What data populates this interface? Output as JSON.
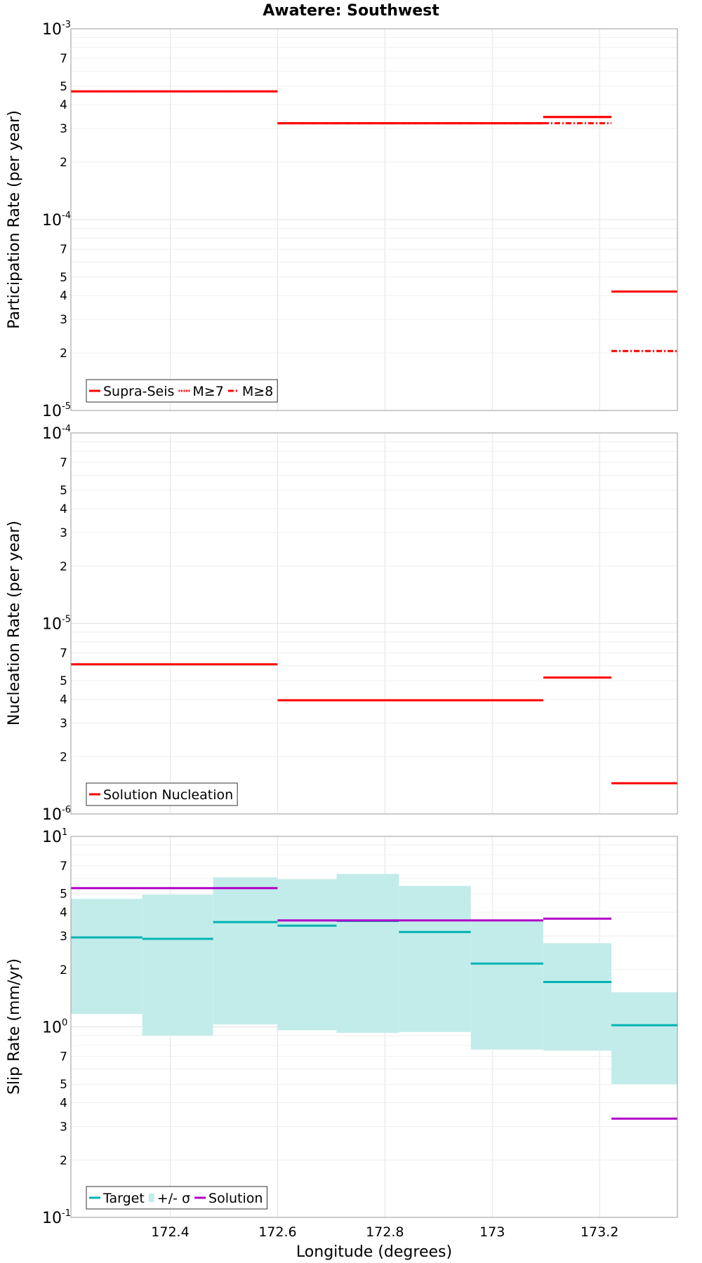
{
  "colors": {
    "red": "#ff0000",
    "teal": "#00b3b3",
    "band": "#c2ecea",
    "purple": "#b000c8"
  },
  "title": "Awatere: Southwest",
  "x_axis": {
    "label": "Longitude (degrees)",
    "range": [
      172.215,
      173.345
    ],
    "ticks": [
      "172.4",
      "172.6",
      "172.8",
      "173",
      "173.2"
    ],
    "tick_values": [
      172.4,
      172.6,
      172.8,
      173.0,
      173.2
    ]
  },
  "chart_data": [
    {
      "type": "line",
      "scale": "log",
      "ylabel": "Participation Rate (per year)",
      "ylim": [
        1e-05,
        0.001
      ],
      "decades": [
        {
          "mantissa": "10",
          "exponent": "-5"
        },
        {
          "mantissa": "10",
          "exponent": "-4"
        },
        {
          "mantissa": "10",
          "exponent": "-3"
        }
      ],
      "minor_labels": [
        "2",
        "3",
        "4",
        "5",
        "7"
      ],
      "series": [
        {
          "name": "Supra-Seis",
          "style": "solid",
          "color": "#ff0000",
          "steps": [
            [
              172.215,
              172.6,
              0.00047
            ],
            [
              172.6,
              173.095,
              0.00032
            ],
            [
              173.095,
              173.222,
              0.000345
            ],
            [
              173.222,
              173.345,
              4.2e-05
            ]
          ]
        },
        {
          "name": "M≥7",
          "style": "dotted",
          "color": "#ff0000",
          "steps": [
            [
              172.215,
              172.6,
              0.00047
            ],
            [
              172.6,
              173.095,
              0.00032
            ],
            [
              173.095,
              173.222,
              0.000345
            ],
            [
              173.222,
              173.345,
              4.2e-05
            ]
          ]
        },
        {
          "name": "M≥8",
          "style": "dashdot",
          "color": "#ff0000",
          "steps": [
            [
              172.6,
              173.095,
              0.00032
            ],
            [
              173.095,
              173.222,
              0.00032
            ],
            [
              173.222,
              173.345,
              2.05e-05
            ]
          ]
        }
      ],
      "legend": [
        "Supra-Seis",
        "M≥7",
        "M≥8"
      ]
    },
    {
      "type": "line",
      "scale": "log",
      "ylabel": "Nucleation Rate (per year)",
      "ylim": [
        1e-06,
        0.0001
      ],
      "decades": [
        {
          "mantissa": "10",
          "exponent": "-6"
        },
        {
          "mantissa": "10",
          "exponent": "-5"
        },
        {
          "mantissa": "10",
          "exponent": "-4"
        }
      ],
      "minor_labels": [
        "2",
        "3",
        "4",
        "5",
        "7"
      ],
      "series": [
        {
          "name": "Solution Nucleation",
          "style": "solid",
          "color": "#ff0000",
          "steps": [
            [
              172.215,
              172.6,
              6.1e-06
            ],
            [
              172.6,
              173.095,
              3.95e-06
            ],
            [
              173.095,
              173.222,
              5.2e-06
            ],
            [
              173.222,
              173.345,
              1.45e-06
            ]
          ]
        }
      ],
      "legend": [
        "Solution Nucleation"
      ]
    },
    {
      "type": "line",
      "scale": "log",
      "ylabel": "Slip Rate (mm/yr)",
      "ylim": [
        0.1,
        10
      ],
      "decades": [
        {
          "mantissa": "10",
          "exponent": "-1"
        },
        {
          "mantissa": "10",
          "exponent": "0"
        },
        {
          "mantissa": "10",
          "exponent": "1"
        }
      ],
      "minor_labels": [
        "2",
        "3",
        "4",
        "5",
        "7"
      ],
      "series": [
        {
          "name": "Target",
          "style": "solid",
          "color": "#00b3b3",
          "steps": [
            [
              172.215,
              172.348,
              2.95
            ],
            [
              172.348,
              172.48,
              2.9
            ],
            [
              172.48,
              172.6,
              3.55
            ],
            [
              172.6,
              172.71,
              3.4
            ],
            [
              172.71,
              172.826,
              3.6
            ],
            [
              172.826,
              172.96,
              3.15
            ],
            [
              172.96,
              173.095,
              2.15
            ],
            [
              173.095,
              173.222,
              1.72
            ],
            [
              173.222,
              173.345,
              1.02
            ]
          ]
        },
        {
          "name": "+/- σ",
          "style": "band",
          "color": "#c2ecea",
          "bands": [
            [
              172.215,
              172.348,
              1.17,
              4.7
            ],
            [
              172.348,
              172.48,
              0.9,
              4.95
            ],
            [
              172.48,
              172.6,
              1.03,
              6.1
            ],
            [
              172.6,
              172.71,
              0.96,
              5.95
            ],
            [
              172.71,
              172.826,
              0.93,
              6.35
            ],
            [
              172.826,
              172.96,
              0.94,
              5.5
            ],
            [
              172.96,
              173.095,
              0.76,
              3.65
            ],
            [
              173.095,
              173.222,
              0.75,
              2.75
            ],
            [
              173.222,
              173.345,
              0.5,
              1.52
            ]
          ]
        },
        {
          "name": "Solution",
          "style": "solid",
          "color": "#b000c8",
          "steps": [
            [
              172.215,
              172.6,
              5.35
            ],
            [
              172.6,
              173.095,
              3.62
            ],
            [
              173.095,
              173.222,
              3.7
            ],
            [
              173.222,
              173.345,
              0.33
            ]
          ]
        }
      ],
      "legend": [
        "Target",
        "+/- σ",
        "Solution"
      ]
    }
  ]
}
